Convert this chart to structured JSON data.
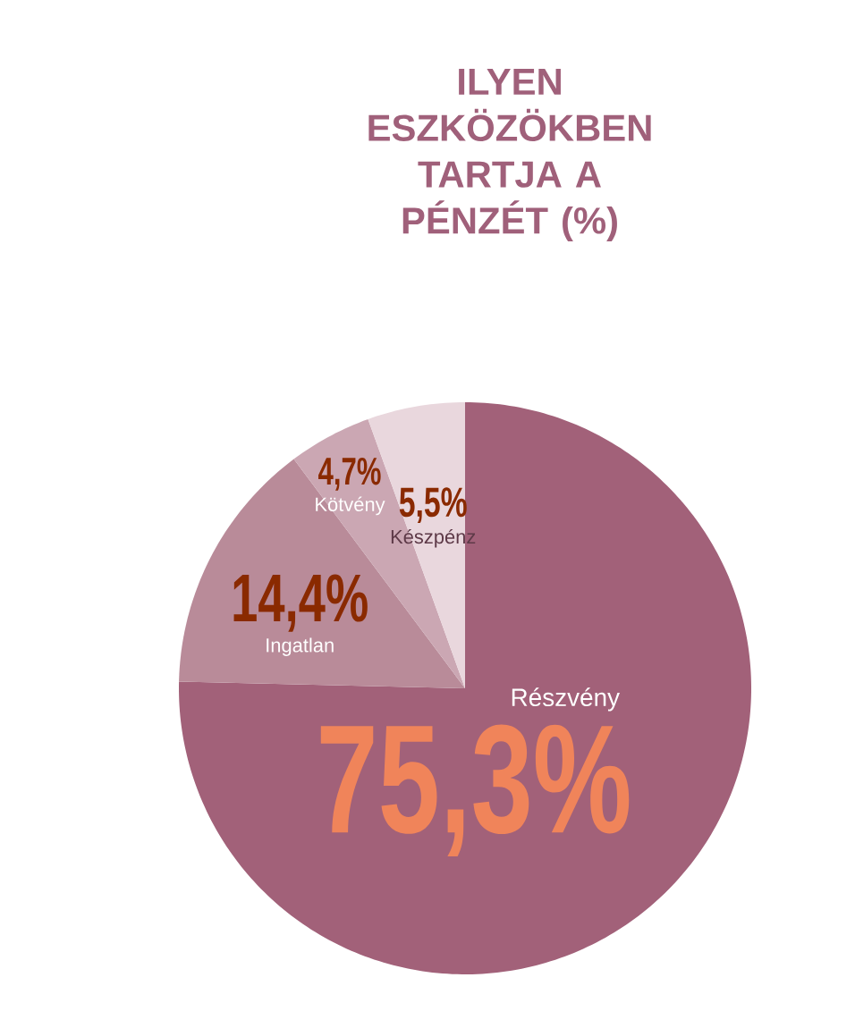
{
  "chart_data": {
    "type": "pie",
    "title": "ILYEN ESZKÖZÖKBEN TARTJA A PÉNZÉT (%)",
    "categories": [
      "Részvény",
      "Ingatlan",
      "Kötvény",
      "Készpénz"
    ],
    "values": [
      75.3,
      14.4,
      4.7,
      5.5
    ],
    "colors": [
      "#a26179",
      "#b98b99",
      "#cba7b3",
      "#e9d7dd"
    ],
    "value_labels": [
      "75,3%",
      "14,4%",
      "4,7%",
      "5,5%"
    ]
  }
}
